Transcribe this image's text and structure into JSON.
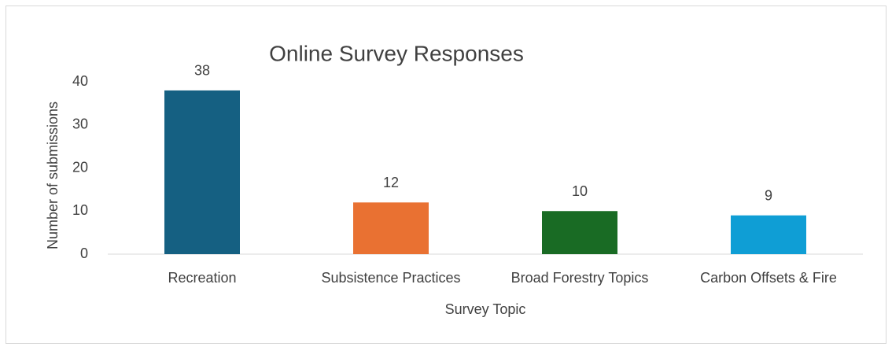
{
  "chart_data": {
    "type": "bar",
    "title": "Online Survey Responses",
    "x_label": "Survey Topic",
    "y_label": "Number of submissions",
    "categories": [
      "Recreation",
      "Subsistence Practices",
      "Broad Forestry Topics",
      "Carbon Offsets & Fire"
    ],
    "values": [
      38,
      12,
      10,
      9
    ],
    "colors": [
      "#156082",
      "#e97132",
      "#196b24",
      "#0f9ed5"
    ],
    "ylim": [
      0,
      40
    ],
    "yticks": [
      0,
      10,
      20,
      30,
      40
    ],
    "grid": false
  }
}
